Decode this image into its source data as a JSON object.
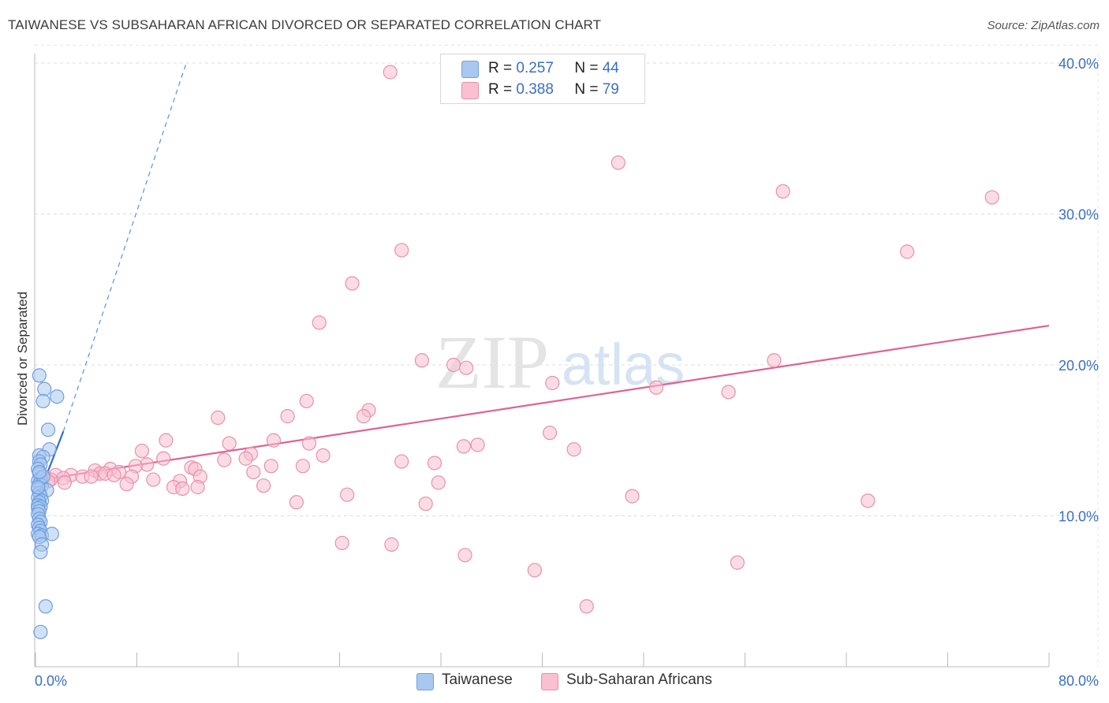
{
  "title": "TAIWANESE VS SUBSAHARAN AFRICAN DIVORCED OR SEPARATED CORRELATION CHART",
  "source": "Source: ZipAtlas.com",
  "watermark": {
    "zip": "ZIP",
    "atlas": "atlas"
  },
  "legend": {
    "rows": [
      {
        "r_label": "R =",
        "r_value": "0.257",
        "n_label": "N =",
        "n_value": "44",
        "color": "#a9c8f0",
        "border": "#6f9fe0"
      },
      {
        "r_label": "R =",
        "r_value": "0.388",
        "n_label": "N =",
        "n_value": "79",
        "color": "#f8c0d0",
        "border": "#e890ac"
      }
    ]
  },
  "bottom_legend": [
    {
      "label": "Taiwanese",
      "color": "#a9c8f0",
      "border": "#6f9fe0"
    },
    {
      "label": "Sub-Saharan Africans",
      "color": "#f8c0d0",
      "border": "#e890ac"
    }
  ],
  "chart_data": {
    "type": "scatter",
    "title": "TAIWANESE VS SUBSAHARAN AFRICAN DIVORCED OR SEPARATED CORRELATION CHART",
    "xlabel": "",
    "ylabel": "Divorced or Separated",
    "xlim": [
      0,
      80
    ],
    "ylim": [
      0,
      41.5
    ],
    "x_ticks_labels": [
      "0.0%",
      "80.0%"
    ],
    "y_ticks": [
      10,
      20,
      30,
      40
    ],
    "y_tick_labels": [
      "10.0%",
      "20.0%",
      "30.0%",
      "40.0%"
    ],
    "grid": true,
    "series": [
      {
        "name": "Taiwanese",
        "color": "#6f9fe0",
        "fill": "#a9c8f0",
        "trend": {
          "x": [
            0,
            2.2
          ],
          "y": [
            10.8,
            15.6
          ],
          "style": "solid"
        },
        "trend_ext": {
          "x": [
            2.2,
            11.9
          ],
          "y": [
            15.6,
            40.0
          ],
          "style": "dashed"
        },
        "points": [
          [
            0.3,
            19.3
          ],
          [
            0.7,
            18.4
          ],
          [
            0.6,
            17.6
          ],
          [
            1.7,
            17.9
          ],
          [
            1.0,
            15.7
          ],
          [
            1.1,
            14.4
          ],
          [
            0.3,
            14.0
          ],
          [
            0.6,
            13.9
          ],
          [
            0.3,
            13.6
          ],
          [
            0.4,
            13.4
          ],
          [
            0.2,
            13.1
          ],
          [
            0.3,
            12.8
          ],
          [
            0.4,
            12.5
          ],
          [
            0.2,
            12.3
          ],
          [
            0.3,
            12.1
          ],
          [
            0.5,
            12.0
          ],
          [
            0.2,
            11.8
          ],
          [
            0.9,
            11.7
          ],
          [
            0.3,
            11.5
          ],
          [
            0.4,
            11.3
          ],
          [
            0.2,
            11.2
          ],
          [
            0.5,
            11.0
          ],
          [
            0.3,
            10.9
          ],
          [
            0.2,
            10.7
          ],
          [
            0.4,
            10.6
          ],
          [
            0.2,
            10.5
          ],
          [
            0.3,
            10.3
          ],
          [
            0.2,
            10.1
          ],
          [
            0.3,
            9.8
          ],
          [
            0.4,
            9.6
          ],
          [
            0.2,
            9.4
          ],
          [
            0.3,
            9.2
          ],
          [
            0.4,
            9.0
          ],
          [
            0.2,
            8.8
          ],
          [
            0.5,
            8.7
          ],
          [
            0.3,
            8.6
          ],
          [
            1.3,
            8.8
          ],
          [
            0.5,
            8.1
          ],
          [
            0.4,
            7.6
          ],
          [
            0.8,
            4.0
          ],
          [
            0.4,
            2.3
          ],
          [
            0.6,
            12.6
          ],
          [
            0.3,
            12.9
          ],
          [
            0.2,
            11.9
          ]
        ]
      },
      {
        "name": "Sub-Saharan Africans",
        "color": "#e890ac",
        "fill": "#f8c0d0",
        "trend": {
          "x": [
            0.5,
            80
          ],
          "y": [
            12.4,
            22.6
          ],
          "style": "solid"
        },
        "points": [
          [
            28.0,
            39.4
          ],
          [
            46.0,
            33.4
          ],
          [
            59.0,
            31.5
          ],
          [
            75.5,
            31.1
          ],
          [
            28.9,
            27.6
          ],
          [
            68.8,
            27.5
          ],
          [
            25.0,
            25.4
          ],
          [
            22.4,
            22.8
          ],
          [
            30.5,
            20.3
          ],
          [
            33.0,
            20.0
          ],
          [
            34.0,
            19.8
          ],
          [
            58.3,
            20.3
          ],
          [
            40.8,
            18.8
          ],
          [
            49.0,
            18.5
          ],
          [
            54.7,
            18.2
          ],
          [
            26.3,
            17.0
          ],
          [
            21.4,
            17.6
          ],
          [
            19.9,
            16.6
          ],
          [
            14.4,
            16.5
          ],
          [
            25.9,
            16.6
          ],
          [
            40.6,
            15.5
          ],
          [
            18.8,
            15.0
          ],
          [
            10.3,
            15.0
          ],
          [
            15.3,
            14.8
          ],
          [
            21.6,
            14.8
          ],
          [
            34.9,
            14.7
          ],
          [
            33.8,
            14.6
          ],
          [
            42.5,
            14.4
          ],
          [
            8.4,
            14.3
          ],
          [
            17.0,
            14.1
          ],
          [
            22.7,
            14.0
          ],
          [
            10.1,
            13.8
          ],
          [
            16.6,
            13.8
          ],
          [
            14.9,
            13.7
          ],
          [
            28.9,
            13.6
          ],
          [
            31.5,
            13.5
          ],
          [
            8.8,
            13.4
          ],
          [
            7.9,
            13.3
          ],
          [
            18.6,
            13.3
          ],
          [
            21.1,
            13.3
          ],
          [
            12.3,
            13.2
          ],
          [
            12.6,
            13.1
          ],
          [
            5.9,
            13.1
          ],
          [
            4.7,
            13.0
          ],
          [
            6.6,
            12.9
          ],
          [
            17.2,
            12.9
          ],
          [
            5.1,
            12.8
          ],
          [
            5.5,
            12.8
          ],
          [
            6.2,
            12.7
          ],
          [
            1.6,
            12.7
          ],
          [
            2.8,
            12.7
          ],
          [
            0.7,
            12.6
          ],
          [
            13.0,
            12.6
          ],
          [
            7.6,
            12.6
          ],
          [
            3.7,
            12.6
          ],
          [
            4.4,
            12.6
          ],
          [
            2.2,
            12.5
          ],
          [
            1.2,
            12.4
          ],
          [
            1.0,
            12.3
          ],
          [
            0.4,
            12.2
          ],
          [
            9.3,
            12.4
          ],
          [
            11.4,
            12.3
          ],
          [
            2.3,
            12.2
          ],
          [
            31.8,
            12.2
          ],
          [
            7.2,
            12.1
          ],
          [
            18.0,
            12.0
          ],
          [
            10.9,
            11.9
          ],
          [
            12.8,
            11.9
          ],
          [
            11.6,
            11.8
          ],
          [
            24.6,
            11.4
          ],
          [
            47.1,
            11.3
          ],
          [
            65.7,
            11.0
          ],
          [
            20.6,
            10.9
          ],
          [
            30.8,
            10.8
          ],
          [
            24.2,
            8.2
          ],
          [
            28.1,
            8.1
          ],
          [
            33.9,
            7.4
          ],
          [
            55.4,
            6.9
          ],
          [
            39.4,
            6.4
          ],
          [
            43.5,
            4.0
          ]
        ]
      }
    ]
  }
}
